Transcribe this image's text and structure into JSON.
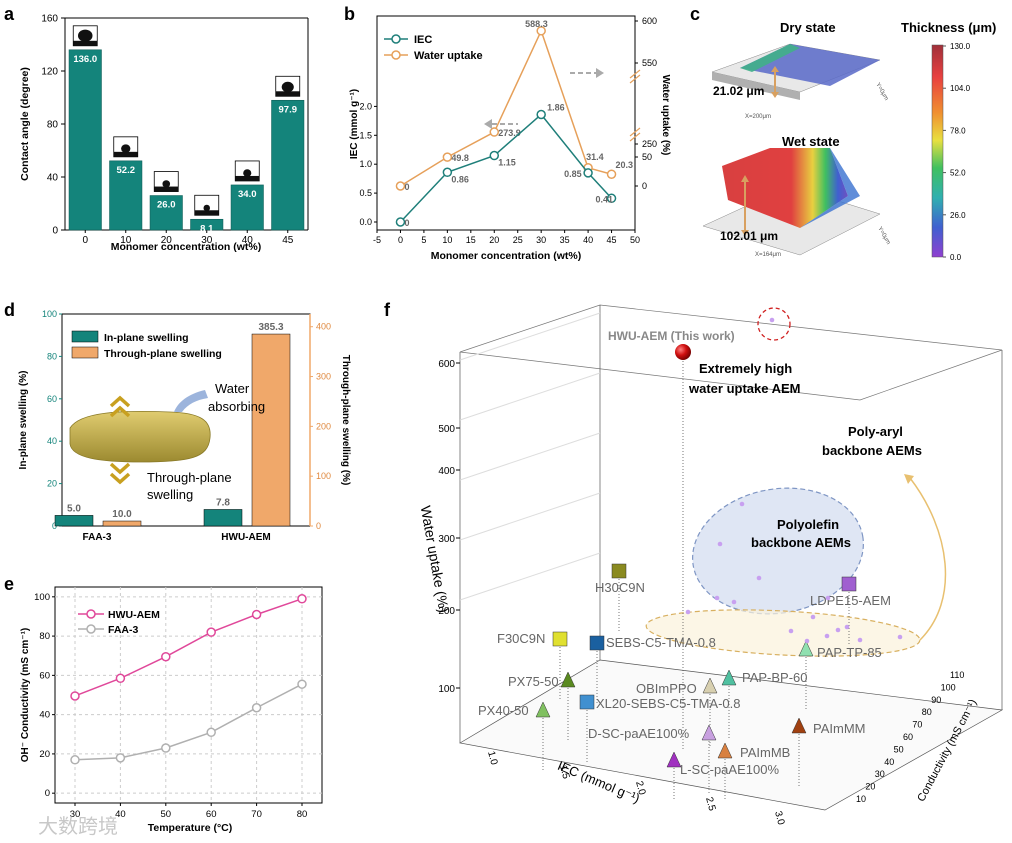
{
  "panel_letters": {
    "a": "a",
    "b": "b",
    "c": "c",
    "d": "d",
    "e": "e",
    "f": "f"
  },
  "colors": {
    "teal": "#14847b",
    "orange": "#f0a86a",
    "pink": "#e0489a",
    "grey": "#b0b0b0",
    "line_teal": "#1f7f7a",
    "line_orange": "#e6a05a"
  },
  "chart_data": [
    {
      "id": "a",
      "type": "bar",
      "title": "",
      "xlabel": "Monomer concentration (wt%)",
      "ylabel": "Contact angle (degree)",
      "categories": [
        "0",
        "10",
        "20",
        "30",
        "40",
        "45"
      ],
      "values": [
        136.0,
        52.2,
        26.0,
        8.1,
        34.0,
        97.9
      ],
      "labels": [
        "136.0",
        "52.2",
        "26.0",
        "8.1",
        "34.0",
        "97.9"
      ],
      "yticks": [
        "0",
        "40",
        "80",
        "120",
        "160"
      ],
      "ylim": [
        0,
        160
      ]
    },
    {
      "id": "b",
      "type": "line",
      "xlabel": "Monomer concentration (wt%)",
      "ylabel_left": "IEC (mmol g⁻¹)",
      "ylabel_right": "Water uptake (%)",
      "x": [
        0,
        10,
        20,
        30,
        40,
        45
      ],
      "xticks": [
        "-5",
        "0",
        "5",
        "10",
        "15",
        "20",
        "25",
        "30",
        "35",
        "40",
        "45",
        "50"
      ],
      "yticks_left": [
        "0.0",
        "0.5",
        "1.0",
        "1.5",
        "2.0"
      ],
      "yticks_right": [
        "0",
        "50",
        "250",
        "550",
        "600"
      ],
      "series": [
        {
          "name": "IEC",
          "values": [
            0,
            0.86,
            1.15,
            1.86,
            0.85,
            0.41
          ],
          "labels": [
            "0",
            "0.86",
            "1.15",
            "1.86",
            "0.85",
            "0.41"
          ]
        },
        {
          "name": "Water uptake",
          "values": [
            0,
            49.8,
            273.9,
            588.3,
            31.4,
            20.3
          ],
          "labels": [
            "0",
            "49.8",
            "273.9",
            "588.3",
            "31.4",
            "20.3"
          ]
        }
      ]
    },
    {
      "id": "c",
      "type": "heatmap",
      "title": "Thickness (μm)",
      "colorbar_ticks": [
        "130.0",
        "104.0",
        "78.0",
        "52.0",
        "26.0",
        "0.0"
      ],
      "dry_label": "Dry state",
      "wet_label": "Wet state",
      "dry_value": "21.02 μm",
      "wet_value": "102.01 μm",
      "dry_axis": "X=200μm",
      "wet_axis": "X=164μm",
      "dry_y": "Y=0μm",
      "wet_y": "Y=0μm"
    },
    {
      "id": "d",
      "type": "bar",
      "ylabel_left": "In-plane swelling (%)",
      "ylabel_right": "Through-plane swelling (%)",
      "categories": [
        "FAA-3",
        "HWU-AEM"
      ],
      "series": [
        {
          "name": "In-plane swelling",
          "values": [
            5.0,
            7.8
          ],
          "labels": [
            "5.0",
            "7.8"
          ]
        },
        {
          "name": "Through-plane swelling",
          "values": [
            10.0,
            385.3
          ],
          "labels": [
            "10.0",
            "385.3"
          ]
        }
      ],
      "yticks_left": [
        "0",
        "20",
        "40",
        "60",
        "80",
        "100"
      ],
      "yticks_right": [
        "0",
        "100",
        "200",
        "300",
        "400"
      ],
      "annotations": {
        "water": "Water",
        "absorbing": "absorbing",
        "through": "Through-plane",
        "swelling": "swelling"
      }
    },
    {
      "id": "e",
      "type": "line",
      "xlabel": "Temperature (°C)",
      "ylabel": "OH⁻ Conductivity (mS cm⁻¹)",
      "x": [
        30,
        40,
        50,
        60,
        70,
        80
      ],
      "xticks": [
        "30",
        "40",
        "50",
        "60",
        "70",
        "80"
      ],
      "yticks": [
        "0",
        "20",
        "40",
        "60",
        "80",
        "100"
      ],
      "ylim": [
        0,
        105
      ],
      "series": [
        {
          "name": "HWU-AEM",
          "values": [
            49.5,
            58.5,
            69.5,
            82,
            91,
            99
          ]
        },
        {
          "name": "FAA-3",
          "values": [
            17,
            18,
            23,
            31,
            43.5,
            55.5
          ]
        }
      ]
    },
    {
      "id": "f",
      "type": "scatter",
      "xlabel": "IEC (mmol g⁻¹)",
      "ylabel": "Water uptake (%)",
      "zlabel": "Conductivity (mS cm⁻¹)",
      "xticks": [
        "1.0",
        "1.5",
        "2.0",
        "2.5",
        "3.0"
      ],
      "yticks": [
        "100",
        "200",
        "300",
        "400",
        "500",
        "600"
      ],
      "zticks": [
        "10",
        "20",
        "30",
        "40",
        "50",
        "60",
        "70",
        "80",
        "90",
        "100",
        "110"
      ],
      "highlight": "HWU-AEM (This work)",
      "callout_1": "Extremely high",
      "callout_2": "water uptake AEM",
      "group_polyaryl_1": "Poly-aryl",
      "group_polyaryl_2": "backbone AEMs",
      "group_polyolefin_1": "Polyolefin",
      "group_polyolefin_2": "backbone AEMs",
      "points": [
        "H30C9N",
        "F30C9N",
        "SEBS-C5-TMA-0.8",
        "LDPE15-AEM",
        "PAP-TP-85",
        "PX75-50",
        "OBImPPO",
        "PAP-BP-60",
        "PX40-50",
        "XL20-SEBS-C5-TMA-0.8",
        "D-SC-paAE100%",
        "PAImMM",
        "PAImMB",
        "L-SC-paAE100%"
      ]
    }
  ],
  "watermark": "大数跨境"
}
